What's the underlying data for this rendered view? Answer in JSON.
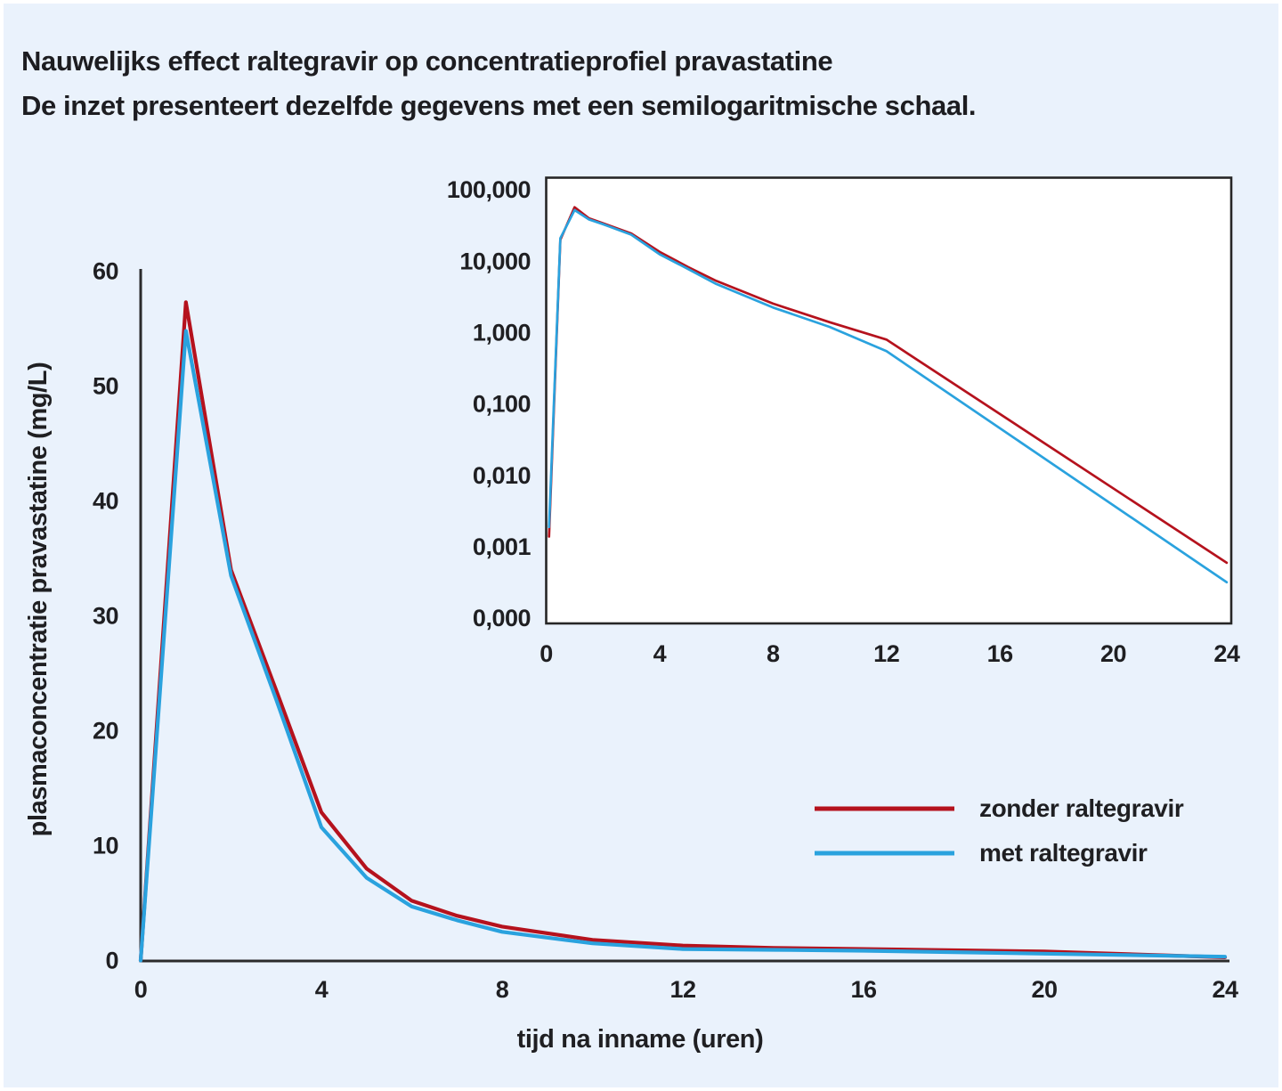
{
  "page": {
    "background_color": "#eaf2fc",
    "title_line1": "Nauwelijks effect raltegravir op concentratieprofiel pravastatine",
    "title_line2": "De inzet presenteert dezelfde gegevens met een semilogaritmische schaal."
  },
  "colors": {
    "zonder_raltegravir": "#b5121d",
    "met_raltegravir": "#2aa2de",
    "axis": "#2b2b2b",
    "inset_border": "#262626",
    "inset_background": "#ffffff",
    "text": "#1f1f22"
  },
  "legend": {
    "items": [
      {
        "label": "zonder raltegravir",
        "color": "#b5121d"
      },
      {
        "label": "met raltegravir",
        "color": "#2aa2de"
      }
    ]
  },
  "chart_data": [
    {
      "id": "main",
      "type": "line",
      "yscale": "linear",
      "xlabel": "tijd na inname (uren)",
      "ylabel": "plasmaconcentratie pravastatine (mg/L)",
      "xlim": [
        0,
        24
      ],
      "ylim": [
        0,
        60
      ],
      "grid": false,
      "xticks": {
        "values": [
          0,
          4,
          8,
          12,
          16,
          20,
          24
        ],
        "labels": [
          "0",
          "4",
          "8",
          "12",
          "16",
          "20",
          "24"
        ]
      },
      "yticks": {
        "values": [
          0,
          10,
          20,
          30,
          40,
          50,
          60
        ],
        "labels": [
          "0",
          "10",
          "20",
          "30",
          "40",
          "50",
          "60"
        ]
      },
      "series": [
        {
          "name": "zonder raltegravir",
          "color": "#b5121d",
          "points": [
            [
              0,
              0
            ],
            [
              1,
              57.3
            ],
            [
              2,
              34
            ],
            [
              3,
              23.5
            ],
            [
              4,
              12.9
            ],
            [
              5,
              8.0
            ],
            [
              6,
              5.2
            ],
            [
              7,
              3.9
            ],
            [
              8,
              2.95
            ],
            [
              10,
              1.8
            ],
            [
              12,
              1.3
            ],
            [
              14,
              1.1
            ],
            [
              16,
              1.0
            ],
            [
              20,
              0.78
            ],
            [
              24,
              0.28
            ]
          ]
        },
        {
          "name": "met raltegravir",
          "color": "#2aa2de",
          "points": [
            [
              0,
              0
            ],
            [
              1,
              54.8
            ],
            [
              2,
              33.5
            ],
            [
              3,
              22.7
            ],
            [
              4,
              11.6
            ],
            [
              5,
              7.2
            ],
            [
              6,
              4.7
            ],
            [
              7,
              3.5
            ],
            [
              8,
              2.5
            ],
            [
              10,
              1.5
            ],
            [
              12,
              1.0
            ],
            [
              14,
              0.93
            ],
            [
              16,
              0.85
            ],
            [
              20,
              0.6
            ],
            [
              24,
              0.33
            ]
          ]
        }
      ]
    },
    {
      "id": "inset",
      "type": "line",
      "yscale": "log",
      "xlabel": "",
      "ylabel": "",
      "xlim": [
        0,
        24
      ],
      "ylim": [
        0.0001,
        150
      ],
      "grid": false,
      "xticks": {
        "values": [
          0,
          4,
          8,
          12,
          16,
          20,
          24
        ],
        "labels": [
          "0",
          "4",
          "8",
          "12",
          "16",
          "20",
          "24"
        ]
      },
      "yticks": {
        "values": [
          100,
          10,
          1,
          0.1,
          0.01,
          0.001,
          0
        ],
        "labels": [
          "100,000",
          "10,000",
          "1,000",
          "0,100",
          "0,010",
          "0,001",
          "0,000"
        ]
      },
      "series": [
        {
          "name": "zonder raltegravir",
          "color": "#b5121d",
          "points": [
            [
              0.1,
              0.0014
            ],
            [
              0.5,
              20
            ],
            [
              1,
              57
            ],
            [
              1.5,
              40
            ],
            [
              2,
              34
            ],
            [
              3,
              24.5
            ],
            [
              4,
              13.5
            ],
            [
              5,
              8.3
            ],
            [
              6,
              5.3
            ],
            [
              8,
              2.55
            ],
            [
              10,
              1.4
            ],
            [
              12,
              0.8
            ],
            [
              24,
              0.0006
            ]
          ]
        },
        {
          "name": "met raltegravir",
          "color": "#2aa2de",
          "points": [
            [
              0.1,
              0.0019
            ],
            [
              0.5,
              21
            ],
            [
              1,
              52
            ],
            [
              1.5,
              38.5
            ],
            [
              2,
              33
            ],
            [
              3,
              23.5
            ],
            [
              4,
              12.5
            ],
            [
              5,
              7.8
            ],
            [
              6,
              4.8
            ],
            [
              8,
              2.25
            ],
            [
              10,
              1.2
            ],
            [
              12,
              0.55
            ],
            [
              24,
              0.00032
            ]
          ]
        }
      ]
    }
  ]
}
